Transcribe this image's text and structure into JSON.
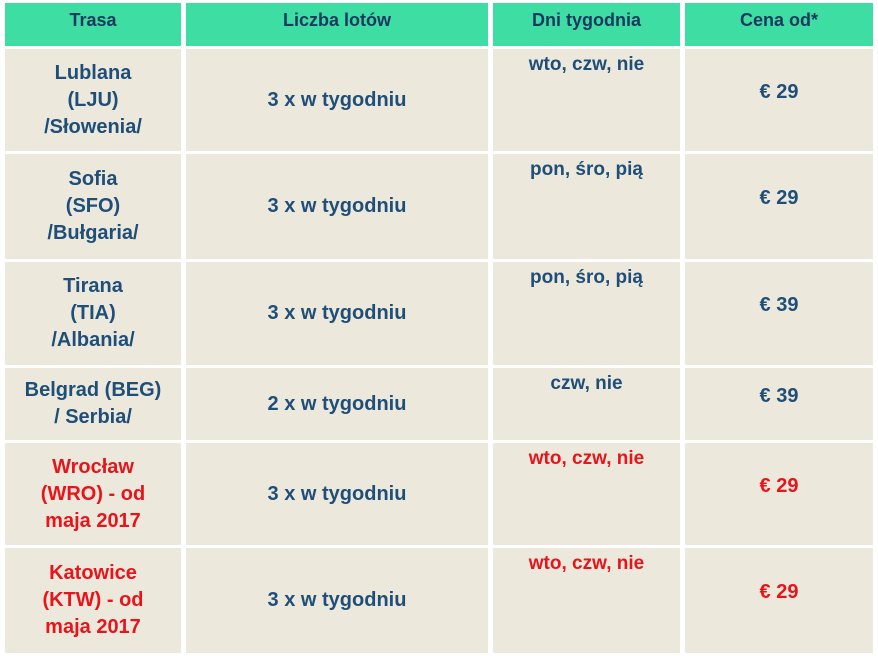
{
  "table": {
    "headers": [
      "Trasa",
      "Liczba lotów",
      "Dni tygodnia",
      "Cena od*"
    ],
    "rows": [
      {
        "route": "Lublana\n(LJU)\n/Słowenia/",
        "flights": "3 x w tygodniu",
        "days": "wto, czw, nie",
        "price": "€ 29",
        "highlight": false
      },
      {
        "route": "Sofia\n(SFO)\n/Bułgaria/",
        "flights": "3 x w tygodniu",
        "days": "pon, śro, pią",
        "price": "€ 29",
        "highlight": false
      },
      {
        "route": "Tirana\n(TIA)\n/Albania/",
        "flights": "3 x w tygodniu",
        "days": "pon, śro, pią",
        "price": "€ 39",
        "highlight": false
      },
      {
        "route": "Belgrad (BEG)\n/ Serbia/",
        "flights": "2 x w tygodniu",
        "days": "czw, nie",
        "price": "€ 39",
        "highlight": false
      },
      {
        "route": "Wrocław\n(WRO) - od\nmaja 2017",
        "flights": "3 x w tygodniu",
        "days": "wto, czw, nie",
        "price": "€ 29",
        "highlight": true
      },
      {
        "route": "Katowice\n(KTW) - od\nmaja 2017",
        "flights": "3 x w tygodniu",
        "days": "wto, czw, nie",
        "price": "€ 29",
        "highlight": true
      }
    ],
    "colors": {
      "header_bg": "#3edda4",
      "header_text": "#17395e",
      "body_text": "#1f4e79",
      "highlight_text": "#e9141b",
      "row_bg": "#ece9dc",
      "gap": "#ffffff"
    }
  }
}
